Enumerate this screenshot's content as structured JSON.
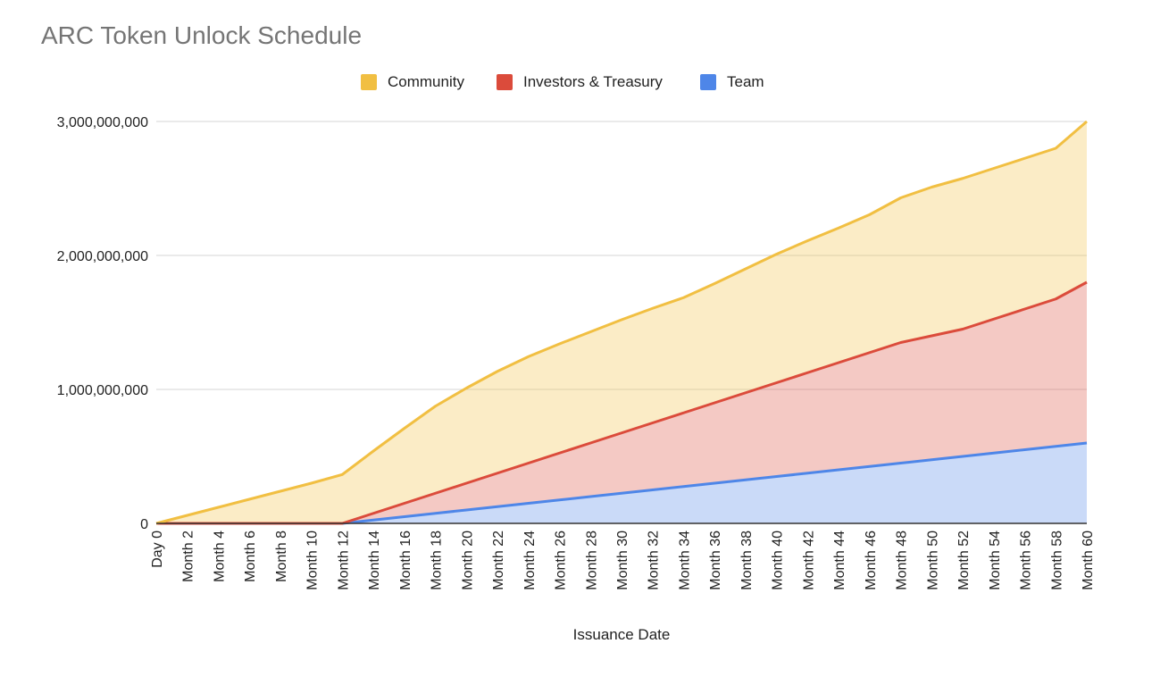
{
  "colors": {
    "Community": "#f1bf42",
    "Investors & Treasury": "#db4b3b",
    "Team": "#4e86e8",
    "grid": "#d6d6d6",
    "axis_text": "#222222"
  },
  "chart_data": {
    "type": "area",
    "stacked": true,
    "title": "ARC Token Unlock Schedule",
    "xlabel": "Issuance Date",
    "ylabel": "",
    "ylim": [
      0,
      3000000000
    ],
    "yticks": [
      "0",
      "1,000,000,000",
      "2,000,000,000",
      "3,000,000,000"
    ],
    "ytick_values": [
      0,
      1000000000,
      2000000000,
      3000000000
    ],
    "grid": true,
    "legend_position": "top-center",
    "categories": [
      "Day 0",
      "Month 2",
      "Month 4",
      "Month 6",
      "Month 8",
      "Month 10",
      "Month 12",
      "Month 14",
      "Month 16",
      "Month 18",
      "Month 20",
      "Month 22",
      "Month 24",
      "Month 26",
      "Month 28",
      "Month 30",
      "Month 32",
      "Month 34",
      "Month 36",
      "Month 38",
      "Month 40",
      "Month 42",
      "Month 44",
      "Month 46",
      "Month 48",
      "Month 50",
      "Month 52",
      "Month 54",
      "Month 56",
      "Month 58",
      "Month 60"
    ],
    "series": [
      {
        "name": "Team",
        "values": [
          0,
          0,
          0,
          0,
          0,
          0,
          0,
          25000000,
          50000000,
          75000000,
          100000000,
          125000000,
          150000000,
          175000000,
          200000000,
          225000000,
          250000000,
          275000000,
          300000000,
          325000000,
          350000000,
          375000000,
          400000000,
          425000000,
          450000000,
          475000000,
          500000000,
          525000000,
          550000000,
          575000000,
          600000000
        ]
      },
      {
        "name": "Investors & Treasury",
        "values": [
          0,
          0,
          0,
          0,
          0,
          0,
          0,
          50000000,
          100000000,
          150000000,
          200000000,
          250000000,
          300000000,
          350000000,
          400000000,
          450000000,
          500000000,
          550000000,
          600000000,
          650000000,
          700000000,
          750000000,
          800000000,
          850000000,
          900000000,
          925000000,
          950000000,
          1000000000,
          1050000000,
          1100000000,
          1200000000
        ]
      },
      {
        "name": "Community",
        "values": [
          0,
          60000000,
          120000000,
          180000000,
          240000000,
          300000000,
          365000000,
          465000000,
          560000000,
          650000000,
          710000000,
          760000000,
          795000000,
          815000000,
          830000000,
          845000000,
          855000000,
          860000000,
          890000000,
          925000000,
          960000000,
          985000000,
          1005000000,
          1030000000,
          1080000000,
          1110000000,
          1125000000,
          1125000000,
          1125000000,
          1125000000,
          1200000000
        ]
      }
    ]
  }
}
